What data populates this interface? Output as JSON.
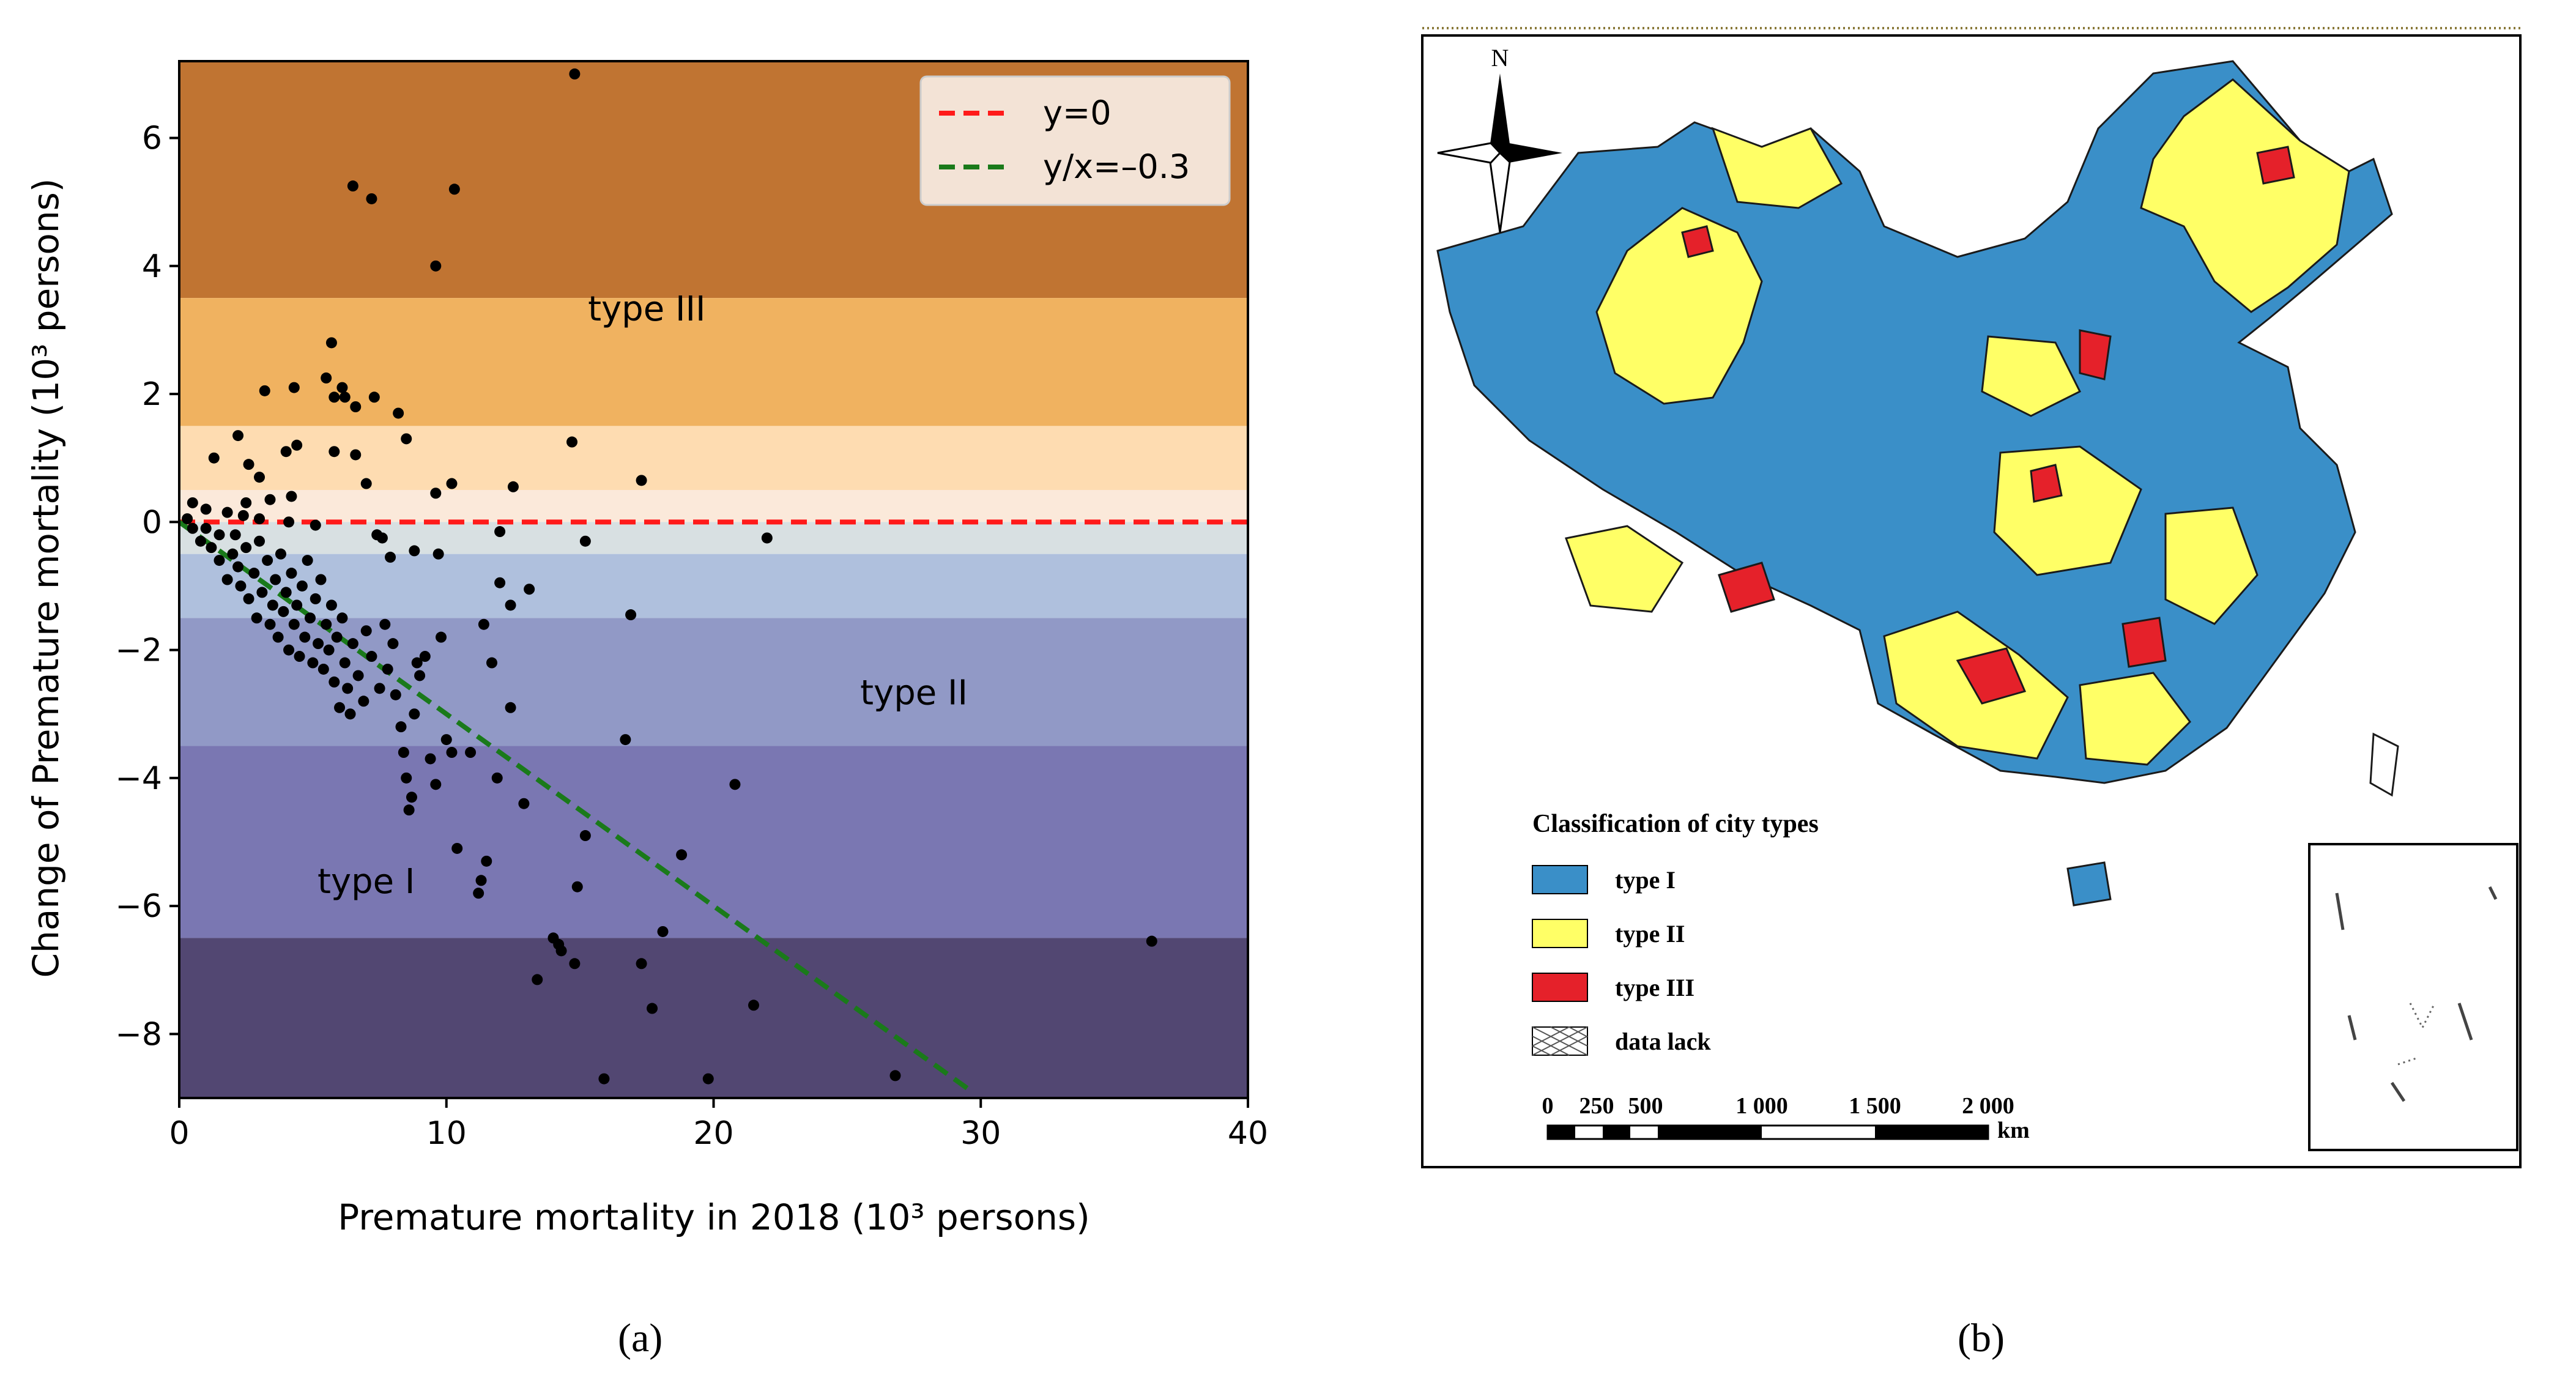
{
  "chart_data": {
    "type": "scatter",
    "xlabel": "Premature mortality in 2018 (10³ persons)",
    "ylabel": "Change of Premature mortality (10³ persons)",
    "xlim": [
      0,
      40
    ],
    "ylim": [
      -9,
      7.2
    ],
    "xticks": [
      0,
      10,
      20,
      30,
      40
    ],
    "yticks": [
      6,
      4,
      2,
      0,
      -2,
      -4,
      -6,
      -8
    ],
    "bands": [
      {
        "from": 3.5,
        "to": 7.2,
        "color": "#c07432"
      },
      {
        "from": 1.5,
        "to": 3.5,
        "color": "#f0b260"
      },
      {
        "from": 0.5,
        "to": 1.5,
        "color": "#fedcb1"
      },
      {
        "from": 0,
        "to": 0.5,
        "color": "#fbe9da"
      },
      {
        "from": -0.5,
        "to": 0,
        "color": "#d8e0e2"
      },
      {
        "from": -1.5,
        "to": -0.5,
        "color": "#afc0dd"
      },
      {
        "from": -3.5,
        "to": -1.5,
        "color": "#9199c6"
      },
      {
        "from": -6.5,
        "to": -3.5,
        "color": "#7a77b2"
      },
      {
        "from": -9,
        "to": -6.5,
        "color": "#524772"
      }
    ],
    "region_labels": [
      {
        "text": "type III",
        "x": 17.5,
        "y": 3.15
      },
      {
        "text": "type II",
        "x": 27.5,
        "y": -2.85
      },
      {
        "text": "type I",
        "x": 7,
        "y": -5.8
      }
    ],
    "lines": [
      {
        "name": "y=0",
        "color": "#ff1a1a",
        "style": "dashed",
        "x": [
          0,
          40
        ],
        "y": [
          0,
          0
        ]
      },
      {
        "name": "y/x=–0.3",
        "color": "#1a7a1a",
        "style": "dashed",
        "x": [
          0,
          29.7
        ],
        "y": [
          0,
          -8.91
        ]
      }
    ],
    "points": [
      [
        14.8,
        7.0
      ],
      [
        6.5,
        5.25
      ],
      [
        7.2,
        5.05
      ],
      [
        10.3,
        5.2
      ],
      [
        9.6,
        4.0
      ],
      [
        5.7,
        2.8
      ],
      [
        3.2,
        2.05
      ],
      [
        4.3,
        2.1
      ],
      [
        5.5,
        2.25
      ],
      [
        6.1,
        2.1
      ],
      [
        6.2,
        1.95
      ],
      [
        5.8,
        1.95
      ],
      [
        6.6,
        1.8
      ],
      [
        7.3,
        1.95
      ],
      [
        8.2,
        1.7
      ],
      [
        8.5,
        1.3
      ],
      [
        2.2,
        1.35
      ],
      [
        1.3,
        1.0
      ],
      [
        4.4,
        1.2
      ],
      [
        4.0,
        1.1
      ],
      [
        5.8,
        1.1
      ],
      [
        6.6,
        1.05
      ],
      [
        7.0,
        0.6
      ],
      [
        3.0,
        0.7
      ],
      [
        2.6,
        0.9
      ],
      [
        14.7,
        1.25
      ],
      [
        17.3,
        0.65
      ],
      [
        12.5,
        0.55
      ],
      [
        10.2,
        0.6
      ],
      [
        9.6,
        0.45
      ],
      [
        4.2,
        0.4
      ],
      [
        3.4,
        0.35
      ],
      [
        2.5,
        0.3
      ],
      [
        0.5,
        0.3
      ],
      [
        1.0,
        0.2
      ],
      [
        1.8,
        0.15
      ],
      [
        2.4,
        0.1
      ],
      [
        3.0,
        0.05
      ],
      [
        4.1,
        0.0
      ],
      [
        5.1,
        -0.05
      ],
      [
        22.0,
        -0.25
      ],
      [
        15.2,
        -0.3
      ],
      [
        12.0,
        -0.15
      ],
      [
        9.7,
        -0.5
      ],
      [
        7.6,
        -0.25
      ],
      [
        7.9,
        -0.55
      ],
      [
        8.8,
        -0.45
      ],
      [
        0.3,
        0.05
      ],
      [
        0.5,
        -0.1
      ],
      [
        0.8,
        -0.3
      ],
      [
        1.0,
        -0.1
      ],
      [
        1.2,
        -0.4
      ],
      [
        1.5,
        -0.6
      ],
      [
        1.5,
        -0.2
      ],
      [
        1.8,
        -0.9
      ],
      [
        2.0,
        -0.5
      ],
      [
        2.1,
        -0.2
      ],
      [
        2.2,
        -0.7
      ],
      [
        2.3,
        -1.0
      ],
      [
        2.5,
        -0.4
      ],
      [
        2.6,
        -1.2
      ],
      [
        2.8,
        -0.8
      ],
      [
        2.9,
        -1.5
      ],
      [
        3.0,
        -0.3
      ],
      [
        3.1,
        -1.1
      ],
      [
        3.3,
        -0.6
      ],
      [
        3.4,
        -1.6
      ],
      [
        3.5,
        -1.3
      ],
      [
        3.6,
        -0.9
      ],
      [
        3.7,
        -1.8
      ],
      [
        3.8,
        -0.5
      ],
      [
        3.9,
        -1.4
      ],
      [
        4.0,
        -1.1
      ],
      [
        4.1,
        -2.0
      ],
      [
        4.2,
        -0.8
      ],
      [
        4.3,
        -1.6
      ],
      [
        4.4,
        -1.3
      ],
      [
        4.5,
        -2.1
      ],
      [
        4.6,
        -1.0
      ],
      [
        4.7,
        -1.8
      ],
      [
        4.8,
        -0.6
      ],
      [
        4.9,
        -1.5
      ],
      [
        5.0,
        -2.2
      ],
      [
        5.1,
        -1.2
      ],
      [
        5.2,
        -1.9
      ],
      [
        5.3,
        -0.9
      ],
      [
        5.4,
        -2.3
      ],
      [
        5.5,
        -1.6
      ],
      [
        5.6,
        -2.0
      ],
      [
        5.7,
        -1.3
      ],
      [
        5.8,
        -2.5
      ],
      [
        5.9,
        -1.8
      ],
      [
        6.0,
        -2.9
      ],
      [
        6.1,
        -1.5
      ],
      [
        6.2,
        -2.2
      ],
      [
        6.3,
        -2.6
      ],
      [
        6.4,
        -3.0
      ],
      [
        6.5,
        -1.9
      ],
      [
        6.7,
        -2.4
      ],
      [
        6.9,
        -2.8
      ],
      [
        7.0,
        -1.7
      ],
      [
        7.2,
        -2.1
      ],
      [
        7.4,
        -0.2
      ],
      [
        7.5,
        -2.6
      ],
      [
        7.7,
        -1.6
      ],
      [
        7.8,
        -2.3
      ],
      [
        8.0,
        -1.9
      ],
      [
        8.1,
        -2.7
      ],
      [
        8.3,
        -3.2
      ],
      [
        8.4,
        -3.6
      ],
      [
        8.5,
        -4.0
      ],
      [
        8.6,
        -4.5
      ],
      [
        8.7,
        -4.3
      ],
      [
        8.8,
        -3.0
      ],
      [
        8.9,
        -2.2
      ],
      [
        9.0,
        -2.4
      ],
      [
        9.2,
        -2.1
      ],
      [
        9.4,
        -3.7
      ],
      [
        9.6,
        -4.1
      ],
      [
        9.8,
        -1.8
      ],
      [
        10.0,
        -3.4
      ],
      [
        10.2,
        -3.6
      ],
      [
        10.4,
        -5.1
      ],
      [
        10.9,
        -3.6
      ],
      [
        11.2,
        -5.8
      ],
      [
        11.3,
        -5.6
      ],
      [
        11.5,
        -5.3
      ],
      [
        11.4,
        -1.6
      ],
      [
        11.7,
        -2.2
      ],
      [
        11.9,
        -4.0
      ],
      [
        12.0,
        -0.95
      ],
      [
        12.4,
        -2.9
      ],
      [
        12.4,
        -1.3
      ],
      [
        12.9,
        -4.4
      ],
      [
        13.1,
        -1.05
      ],
      [
        13.4,
        -7.15
      ],
      [
        14.0,
        -6.5
      ],
      [
        14.2,
        -6.6
      ],
      [
        14.3,
        -6.7
      ],
      [
        14.8,
        -6.9
      ],
      [
        14.9,
        -5.7
      ],
      [
        15.2,
        -4.9
      ],
      [
        15.9,
        -8.7
      ],
      [
        16.7,
        -3.4
      ],
      [
        16.9,
        -1.45
      ],
      [
        17.3,
        -6.9
      ],
      [
        17.7,
        -7.6
      ],
      [
        18.1,
        -6.4
      ],
      [
        18.8,
        -5.2
      ],
      [
        19.8,
        -8.7
      ],
      [
        20.8,
        -4.1
      ],
      [
        21.5,
        -7.55
      ],
      [
        26.8,
        -8.65
      ],
      [
        36.4,
        -6.55
      ]
    ]
  },
  "legend": {
    "items": [
      "y=0",
      "y/x=–0.3"
    ]
  },
  "captions": {
    "a": "(a)",
    "b": "(b)"
  },
  "map": {
    "north_label": "N",
    "legend_title": "Classification of city types",
    "legend_items": [
      {
        "label": "type I",
        "color": "#3a8fc8"
      },
      {
        "label": "type II",
        "color": "#ffff66"
      },
      {
        "label": "type III",
        "color": "#e5212a"
      },
      {
        "label": "data lack",
        "color": "#ffffff"
      }
    ],
    "scale_labels": [
      "0",
      "250",
      "500",
      "1 000",
      "1 500",
      "2 000"
    ],
    "scale_unit": "km"
  }
}
